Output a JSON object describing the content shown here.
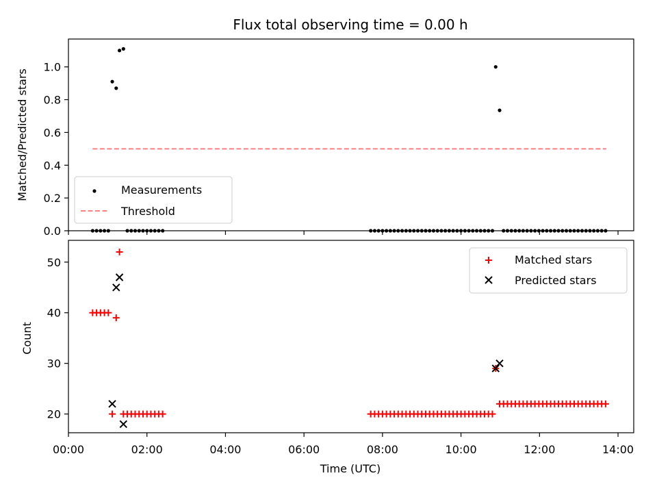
{
  "chart_data": [
    {
      "type": "scatter",
      "title": "Flux total observing time = 0.00 h",
      "xlabel": "",
      "ylabel": "Matched/Predicted stars",
      "xlim": [
        "00:00",
        "14:24"
      ],
      "ylim": [
        0,
        1.17
      ],
      "x_ticks": [
        "00:00",
        "02:00",
        "04:00",
        "06:00",
        "08:00",
        "10:00",
        "12:00",
        "14:00"
      ],
      "x_tick_labels_shown": false,
      "y_ticks": [
        "0.0",
        "0.2",
        "0.4",
        "0.6",
        "0.8",
        "1.0"
      ],
      "grid": false,
      "legend": {
        "placement": "lower-left",
        "entries": [
          "Measurements",
          "Threshold"
        ]
      },
      "series": [
        {
          "name": "Measurements",
          "marker": "dot",
          "color": "#000000",
          "points": [
            {
              "x": "00:37",
              "y": 0
            },
            {
              "x": "00:43",
              "y": 0
            },
            {
              "x": "00:49",
              "y": 0
            },
            {
              "x": "00:55",
              "y": 0
            },
            {
              "x": "01:01",
              "y": 0
            },
            {
              "x": "01:07",
              "y": 0.91
            },
            {
              "x": "01:13",
              "y": 0.87
            },
            {
              "x": "01:18",
              "y": 1.1
            },
            {
              "x": "01:24",
              "y": 1.11
            },
            {
              "x": "01:30",
              "y": 0
            },
            {
              "x": "01:36",
              "y": 0
            },
            {
              "x": "01:42",
              "y": 0
            },
            {
              "x": "01:48",
              "y": 0
            },
            {
              "x": "01:54",
              "y": 0
            },
            {
              "x": "02:00",
              "y": 0
            },
            {
              "x": "02:06",
              "y": 0
            },
            {
              "x": "02:12",
              "y": 0
            },
            {
              "x": "02:18",
              "y": 0
            },
            {
              "x": "02:24",
              "y": 0
            },
            {
              "x": "07:42",
              "y": 0
            },
            {
              "x": "07:48",
              "y": 0
            },
            {
              "x": "07:54",
              "y": 0
            },
            {
              "x": "08:00",
              "y": 0
            },
            {
              "x": "08:06",
              "y": 0
            },
            {
              "x": "08:12",
              "y": 0
            },
            {
              "x": "08:18",
              "y": 0
            },
            {
              "x": "08:24",
              "y": 0
            },
            {
              "x": "08:30",
              "y": 0
            },
            {
              "x": "08:36",
              "y": 0
            },
            {
              "x": "08:42",
              "y": 0
            },
            {
              "x": "08:48",
              "y": 0
            },
            {
              "x": "08:54",
              "y": 0
            },
            {
              "x": "09:00",
              "y": 0
            },
            {
              "x": "09:06",
              "y": 0
            },
            {
              "x": "09:12",
              "y": 0
            },
            {
              "x": "09:18",
              "y": 0
            },
            {
              "x": "09:24",
              "y": 0
            },
            {
              "x": "09:30",
              "y": 0
            },
            {
              "x": "09:36",
              "y": 0
            },
            {
              "x": "09:42",
              "y": 0
            },
            {
              "x": "09:48",
              "y": 0
            },
            {
              "x": "09:54",
              "y": 0
            },
            {
              "x": "10:00",
              "y": 0
            },
            {
              "x": "10:06",
              "y": 0
            },
            {
              "x": "10:12",
              "y": 0
            },
            {
              "x": "10:18",
              "y": 0
            },
            {
              "x": "10:24",
              "y": 0
            },
            {
              "x": "10:30",
              "y": 0
            },
            {
              "x": "10:36",
              "y": 0
            },
            {
              "x": "10:42",
              "y": 0
            },
            {
              "x": "10:48",
              "y": 0
            },
            {
              "x": "10:53",
              "y": 1.0
            },
            {
              "x": "10:59",
              "y": 0.735
            },
            {
              "x": "11:05",
              "y": 0
            },
            {
              "x": "11:11",
              "y": 0
            },
            {
              "x": "11:17",
              "y": 0
            },
            {
              "x": "11:23",
              "y": 0
            },
            {
              "x": "11:29",
              "y": 0
            },
            {
              "x": "11:35",
              "y": 0
            },
            {
              "x": "11:41",
              "y": 0
            },
            {
              "x": "11:47",
              "y": 0
            },
            {
              "x": "11:53",
              "y": 0
            },
            {
              "x": "11:59",
              "y": 0
            },
            {
              "x": "12:05",
              "y": 0
            },
            {
              "x": "12:11",
              "y": 0
            },
            {
              "x": "12:17",
              "y": 0
            },
            {
              "x": "12:23",
              "y": 0
            },
            {
              "x": "12:29",
              "y": 0
            },
            {
              "x": "12:35",
              "y": 0
            },
            {
              "x": "12:41",
              "y": 0
            },
            {
              "x": "12:47",
              "y": 0
            },
            {
              "x": "12:53",
              "y": 0
            },
            {
              "x": "12:59",
              "y": 0
            },
            {
              "x": "13:05",
              "y": 0
            },
            {
              "x": "13:11",
              "y": 0
            },
            {
              "x": "13:17",
              "y": 0
            },
            {
              "x": "13:23",
              "y": 0
            },
            {
              "x": "13:29",
              "y": 0
            },
            {
              "x": "13:35",
              "y": 0
            },
            {
              "x": "13:41",
              "y": 0
            }
          ]
        },
        {
          "name": "Threshold",
          "type": "line",
          "style": "dashed",
          "color": "#ff7f7f",
          "points": [
            {
              "x": "00:37",
              "y": 0.5
            },
            {
              "x": "13:42",
              "y": 0.5
            }
          ]
        }
      ]
    },
    {
      "type": "scatter",
      "title": "",
      "xlabel": "Time (UTC)",
      "ylabel": "Count",
      "xlim": [
        "00:00",
        "14:24"
      ],
      "ylim": [
        16.3,
        54.3
      ],
      "x_ticks": [
        "00:00",
        "02:00",
        "04:00",
        "06:00",
        "08:00",
        "10:00",
        "12:00",
        "14:00"
      ],
      "y_ticks": [
        "20",
        "30",
        "40",
        "50"
      ],
      "grid": false,
      "legend": {
        "placement": "top-right",
        "entries": [
          "Matched stars",
          "Predicted stars"
        ]
      },
      "series": [
        {
          "name": "Matched stars",
          "marker": "plus",
          "color": "#ff0000",
          "points": [
            {
              "x": "00:37",
              "y": 40
            },
            {
              "x": "00:43",
              "y": 40
            },
            {
              "x": "00:49",
              "y": 40
            },
            {
              "x": "00:55",
              "y": 40
            },
            {
              "x": "01:01",
              "y": 40
            },
            {
              "x": "01:07",
              "y": 20
            },
            {
              "x": "01:13",
              "y": 39
            },
            {
              "x": "01:18",
              "y": 52
            },
            {
              "x": "01:24",
              "y": 20
            },
            {
              "x": "01:30",
              "y": 20
            },
            {
              "x": "01:36",
              "y": 20
            },
            {
              "x": "01:42",
              "y": 20
            },
            {
              "x": "01:48",
              "y": 20
            },
            {
              "x": "01:54",
              "y": 20
            },
            {
              "x": "02:00",
              "y": 20
            },
            {
              "x": "02:06",
              "y": 20
            },
            {
              "x": "02:12",
              "y": 20
            },
            {
              "x": "02:18",
              "y": 20
            },
            {
              "x": "02:24",
              "y": 20
            },
            {
              "x": "07:42",
              "y": 20
            },
            {
              "x": "07:48",
              "y": 20
            },
            {
              "x": "07:54",
              "y": 20
            },
            {
              "x": "08:00",
              "y": 20
            },
            {
              "x": "08:06",
              "y": 20
            },
            {
              "x": "08:12",
              "y": 20
            },
            {
              "x": "08:18",
              "y": 20
            },
            {
              "x": "08:24",
              "y": 20
            },
            {
              "x": "08:30",
              "y": 20
            },
            {
              "x": "08:36",
              "y": 20
            },
            {
              "x": "08:42",
              "y": 20
            },
            {
              "x": "08:48",
              "y": 20
            },
            {
              "x": "08:54",
              "y": 20
            },
            {
              "x": "09:00",
              "y": 20
            },
            {
              "x": "09:06",
              "y": 20
            },
            {
              "x": "09:12",
              "y": 20
            },
            {
              "x": "09:18",
              "y": 20
            },
            {
              "x": "09:24",
              "y": 20
            },
            {
              "x": "09:30",
              "y": 20
            },
            {
              "x": "09:36",
              "y": 20
            },
            {
              "x": "09:42",
              "y": 20
            },
            {
              "x": "09:48",
              "y": 20
            },
            {
              "x": "09:54",
              "y": 20
            },
            {
              "x": "10:00",
              "y": 20
            },
            {
              "x": "10:06",
              "y": 20
            },
            {
              "x": "10:12",
              "y": 20
            },
            {
              "x": "10:18",
              "y": 20
            },
            {
              "x": "10:24",
              "y": 20
            },
            {
              "x": "10:30",
              "y": 20
            },
            {
              "x": "10:36",
              "y": 20
            },
            {
              "x": "10:42",
              "y": 20
            },
            {
              "x": "10:48",
              "y": 20
            },
            {
              "x": "10:53",
              "y": 29
            },
            {
              "x": "10:59",
              "y": 22
            },
            {
              "x": "11:05",
              "y": 22
            },
            {
              "x": "11:11",
              "y": 22
            },
            {
              "x": "11:17",
              "y": 22
            },
            {
              "x": "11:23",
              "y": 22
            },
            {
              "x": "11:29",
              "y": 22
            },
            {
              "x": "11:35",
              "y": 22
            },
            {
              "x": "11:41",
              "y": 22
            },
            {
              "x": "11:47",
              "y": 22
            },
            {
              "x": "11:53",
              "y": 22
            },
            {
              "x": "11:59",
              "y": 22
            },
            {
              "x": "12:05",
              "y": 22
            },
            {
              "x": "12:11",
              "y": 22
            },
            {
              "x": "12:17",
              "y": 22
            },
            {
              "x": "12:23",
              "y": 22
            },
            {
              "x": "12:29",
              "y": 22
            },
            {
              "x": "12:35",
              "y": 22
            },
            {
              "x": "12:41",
              "y": 22
            },
            {
              "x": "12:47",
              "y": 22
            },
            {
              "x": "12:53",
              "y": 22
            },
            {
              "x": "12:59",
              "y": 22
            },
            {
              "x": "13:05",
              "y": 22
            },
            {
              "x": "13:11",
              "y": 22
            },
            {
              "x": "13:17",
              "y": 22
            },
            {
              "x": "13:23",
              "y": 22
            },
            {
              "x": "13:29",
              "y": 22
            },
            {
              "x": "13:35",
              "y": 22
            },
            {
              "x": "13:41",
              "y": 22
            }
          ]
        },
        {
          "name": "Predicted stars",
          "marker": "x",
          "color": "#000000",
          "points": [
            {
              "x": "01:07",
              "y": 22
            },
            {
              "x": "01:13",
              "y": 45
            },
            {
              "x": "01:18",
              "y": 47
            },
            {
              "x": "01:24",
              "y": 18
            },
            {
              "x": "10:53",
              "y": 29
            },
            {
              "x": "10:59",
              "y": 30
            }
          ]
        }
      ]
    }
  ]
}
